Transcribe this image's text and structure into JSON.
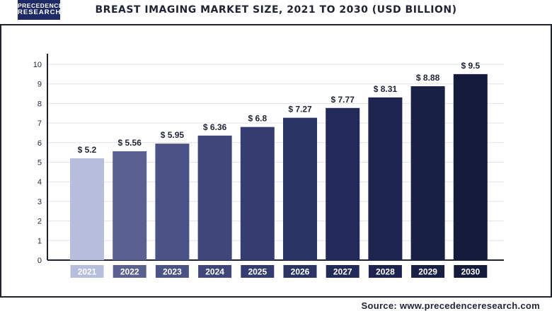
{
  "logo": {
    "line1": "PRECEDENCE",
    "line2": "RESEARCH"
  },
  "source": "Source: www.precedenceresearch.com",
  "chart_data": {
    "type": "bar",
    "title": "BREAST IMAGING MARKET SIZE, 2021 TO 2030 (USD BILLION)",
    "xlabel": "",
    "ylabel": "",
    "categories": [
      "2021",
      "2022",
      "2023",
      "2024",
      "2025",
      "2026",
      "2027",
      "2028",
      "2029",
      "2030"
    ],
    "values": [
      5.2,
      5.56,
      5.95,
      6.36,
      6.8,
      7.27,
      7.77,
      8.31,
      8.88,
      9.5
    ],
    "value_labels": [
      "$ 5.2",
      "$ 5.56",
      "$ 5.95",
      "$ 6.36",
      "$ 6.8",
      "$ 7.27",
      "$ 7.77",
      "$ 8.31",
      "$ 8.88",
      "$ 9.5"
    ],
    "yticks": [
      "0",
      "1",
      "2",
      "3",
      "4",
      "5",
      "6",
      "7",
      "8",
      "9",
      "10"
    ],
    "ylim": [
      0,
      10
    ],
    "grid": true,
    "colors": [
      "#b7bedd",
      "#5a6191",
      "#4b5386",
      "#3f467a",
      "#353c70",
      "#2a3566",
      "#222a5a",
      "#1c244f",
      "#182046",
      "#141b3c"
    ]
  }
}
